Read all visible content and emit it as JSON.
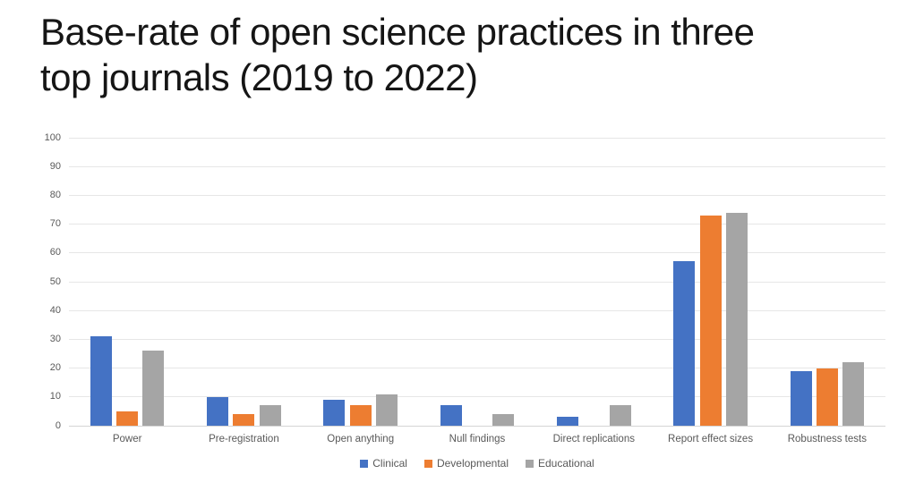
{
  "title": {
    "lines": [
      "Base-rate of open science practices in three",
      "top journals (2019 to 2022)"
    ]
  },
  "chart_data": {
    "type": "bar",
    "title": "Base-rate of open science practices in three top journals (2019 to 2022)",
    "categories": [
      "Power",
      "Pre-registration",
      "Open anything",
      "Null findings",
      "Direct replications",
      "Report effect sizes",
      "Robustness tests"
    ],
    "series": [
      {
        "name": "Clinical",
        "color": "#4472C4",
        "values": [
          31,
          10,
          9,
          7,
          3,
          57,
          19
        ]
      },
      {
        "name": "Developmental",
        "color": "#ED7D31",
        "values": [
          5,
          4,
          7,
          0,
          0,
          73,
          20
        ]
      },
      {
        "name": "Educational",
        "color": "#A5A5A5",
        "values": [
          26,
          7,
          11,
          4,
          7,
          74,
          22
        ]
      }
    ],
    "xlabel": "",
    "ylabel": "",
    "ylim": [
      0,
      100
    ],
    "yticks": [
      0,
      10,
      20,
      30,
      40,
      50,
      60,
      70,
      80,
      90,
      100
    ],
    "grid": "horizontal",
    "legend_position": "bottom"
  },
  "colors": {
    "background": "#FFFFFF",
    "title_text": "#151515",
    "tick_label": "#595959",
    "gridline": "#E6E6E6",
    "axis_line": "#D5D5D5"
  }
}
